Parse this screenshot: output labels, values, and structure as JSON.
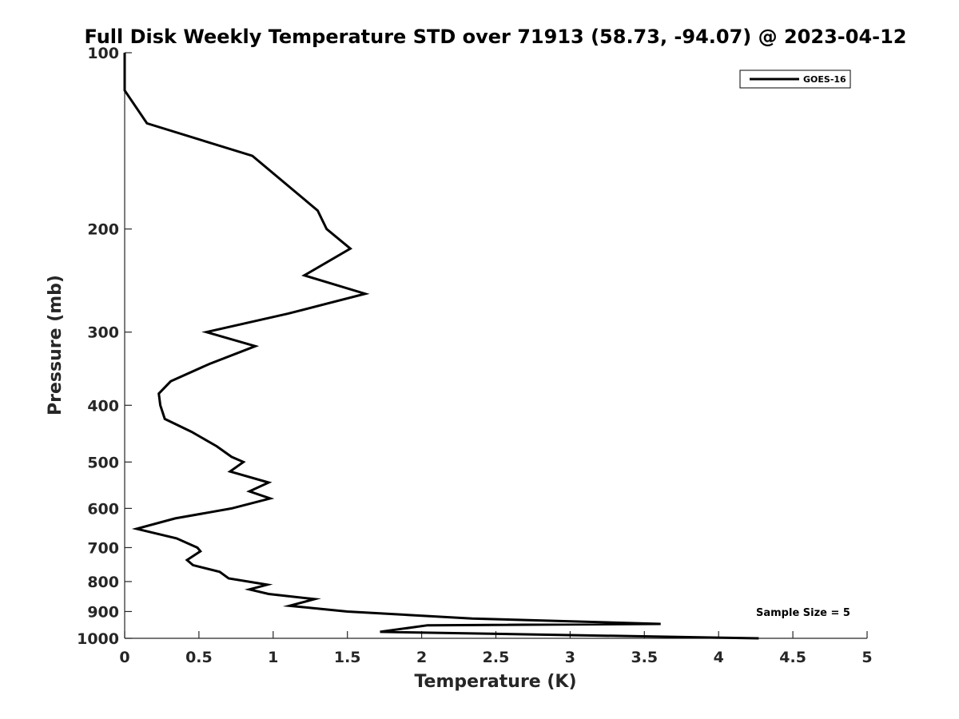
{
  "chart_data": {
    "type": "line",
    "title": "Full Disk Weekly Temperature STD over 71913 (58.73, -94.07) @ 2023-04-12",
    "xlabel": "Temperature (K)",
    "ylabel": "Pressure (mb)",
    "xlim": [
      0,
      5
    ],
    "ylim": [
      100,
      1000
    ],
    "y_scale": "log",
    "y_reversed": true,
    "grid": false,
    "legend_position": "top-right",
    "x_ticks": [
      "0",
      "0.5",
      "1",
      "1.5",
      "2",
      "2.5",
      "3",
      "3.5",
      "4",
      "4.5",
      "5"
    ],
    "y_ticks": [
      "100",
      "200",
      "300",
      "400",
      "500",
      "600",
      "700",
      "800",
      "900",
      "1000"
    ],
    "series": [
      {
        "name": "GOES-16",
        "color": "#000000",
        "points": [
          [
            0.0,
            100
          ],
          [
            0.0,
            116
          ],
          [
            0.15,
            132
          ],
          [
            0.86,
            150
          ],
          [
            1.3,
            186
          ],
          [
            1.36,
            200
          ],
          [
            1.52,
            216
          ],
          [
            1.21,
            240
          ],
          [
            1.62,
            258
          ],
          [
            1.1,
            279
          ],
          [
            0.55,
            300
          ],
          [
            0.88,
            317
          ],
          [
            0.57,
            340
          ],
          [
            0.31,
            364
          ],
          [
            0.23,
            382
          ],
          [
            0.24,
            400
          ],
          [
            0.27,
            422
          ],
          [
            0.45,
            444
          ],
          [
            0.62,
            470
          ],
          [
            0.72,
            490
          ],
          [
            0.8,
            500
          ],
          [
            0.71,
            519
          ],
          [
            0.97,
            542
          ],
          [
            0.84,
            561
          ],
          [
            0.98,
            577
          ],
          [
            0.72,
            600
          ],
          [
            0.34,
            624
          ],
          [
            0.08,
            650
          ],
          [
            0.35,
            675
          ],
          [
            0.49,
            700
          ],
          [
            0.51,
            710
          ],
          [
            0.42,
            735
          ],
          [
            0.46,
            750
          ],
          [
            0.64,
            770
          ],
          [
            0.7,
            790
          ],
          [
            0.96,
            810
          ],
          [
            0.84,
            825
          ],
          [
            0.97,
            840
          ],
          [
            1.28,
            857
          ],
          [
            1.11,
            880
          ],
          [
            1.5,
            900
          ],
          [
            2.34,
            925
          ],
          [
            3.61,
            945
          ],
          [
            2.04,
            950
          ],
          [
            1.72,
            975
          ],
          [
            4.27,
            1000
          ]
        ]
      }
    ],
    "annotations": [
      {
        "text": "Sample Size = 5"
      }
    ]
  }
}
